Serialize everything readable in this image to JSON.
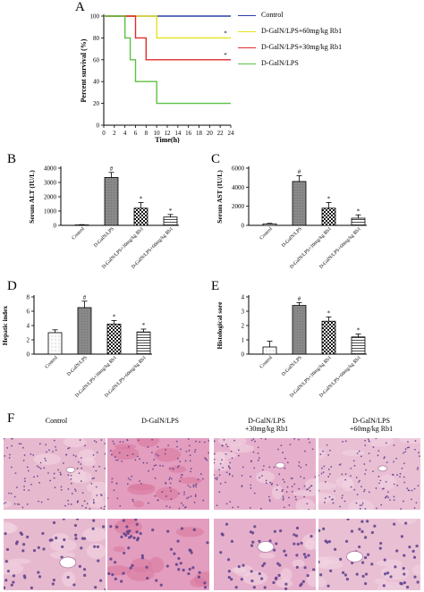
{
  "panels": {
    "A": {
      "letter": "A"
    },
    "B": {
      "letter": "B"
    },
    "C": {
      "letter": "C"
    },
    "D": {
      "letter": "D"
    },
    "E": {
      "letter": "E"
    },
    "F": {
      "letter": "F"
    }
  },
  "colors": {
    "control": "#2b3ea8",
    "rb60": "#e6e21c",
    "rb30": "#e02b2b",
    "galn": "#5dc046",
    "bar_control": "#f4f4f4",
    "bar_galn": "#8a8a8a",
    "bar_rb30": "#bdbdbd",
    "bar_rb60": "#e8e8e8",
    "tissue": "#e5b0c9",
    "nuclei": "#5a3f8a"
  },
  "photo_labels": {
    "control": "Control",
    "galn": "D-GalN/LPS",
    "rb30": "D-GalN/LPS\n+30mg/kg Rb1",
    "rb60": "D-GalN/LPS\n+60mg/kg Rb1"
  },
  "chart_data": [
    {
      "id": "A",
      "type": "line",
      "step": true,
      "xlabel": "Time(h)",
      "ylabel": "Percent survival (%)",
      "xlim": [
        0,
        24
      ],
      "ylim": [
        0,
        100
      ],
      "xticks": [
        "0",
        "2",
        "4",
        "6",
        "8",
        "10",
        "12",
        "14",
        "16",
        "18",
        "20",
        "22",
        "24"
      ],
      "yticks": [
        "0",
        "20",
        "40",
        "60",
        "80",
        "100"
      ],
      "legend_position": "right",
      "series": [
        {
          "name": "Control",
          "color": "#2b3ea8",
          "x": [
            0,
            24
          ],
          "y": [
            100,
            100
          ]
        },
        {
          "name": "D-GalN/LPS+60mg/kg Rb1",
          "color": "#e6e21c",
          "x": [
            0,
            10,
            10,
            24
          ],
          "y": [
            100,
            100,
            80,
            80
          ]
        },
        {
          "name": "D-GalN/LPS+30mg/kg Rb1",
          "color": "#e02b2b",
          "x": [
            0,
            6,
            6,
            8,
            8,
            24
          ],
          "y": [
            100,
            100,
            80,
            80,
            60,
            60
          ]
        },
        {
          "name": "D-GalN/LPS",
          "color": "#5dc046",
          "x": [
            0,
            4,
            4,
            5,
            5,
            6,
            6,
            10,
            10,
            24
          ],
          "y": [
            100,
            100,
            80,
            80,
            60,
            60,
            40,
            40,
            20,
            20
          ]
        }
      ],
      "annotations": [
        "*",
        "*"
      ]
    },
    {
      "id": "B",
      "type": "bar",
      "ylabel": "Serum ALT (IU/L)",
      "ylim": [
        0,
        4000
      ],
      "yticks": [
        "0",
        "1000",
        "2000",
        "3000",
        "4000"
      ],
      "categories": [
        "Control",
        "D-GalN/LPS",
        "D-GalN/LPS+30mg/kg Rb1",
        "D-GalN/LPS+60mg/kg Rb1"
      ],
      "values": [
        30,
        3350,
        1200,
        580
      ],
      "errors": [
        20,
        350,
        400,
        180
      ],
      "marks": [
        "",
        "#",
        "*",
        "*"
      ]
    },
    {
      "id": "C",
      "type": "bar",
      "ylabel": "Serum AST (IU/L)",
      "ylim": [
        0,
        6000
      ],
      "yticks": [
        "0",
        "2000",
        "4000",
        "6000"
      ],
      "categories": [
        "Control",
        "D-GalN/LPS",
        "D-GalN/LPS+30mg/kg Rb1",
        "D-GalN/LPS+60mg/kg Rb1"
      ],
      "values": [
        150,
        4600,
        1800,
        750
      ],
      "errors": [
        60,
        600,
        600,
        350
      ],
      "marks": [
        "",
        "#",
        "*",
        "*"
      ]
    },
    {
      "id": "D",
      "type": "bar",
      "ylabel": "Hepatic index",
      "ylim": [
        0,
        8
      ],
      "yticks": [
        "0",
        "2",
        "4",
        "6",
        "8"
      ],
      "categories": [
        "Control",
        "D-GalN/LPS",
        "D-GalN/LPS+30mg/kg Rb1",
        "D-GalN/LPS+60mg/kg Rb1"
      ],
      "values": [
        3.0,
        6.5,
        4.2,
        3.1
      ],
      "errors": [
        0.4,
        0.9,
        0.5,
        0.4
      ],
      "marks": [
        "",
        "#",
        "*",
        "*"
      ]
    },
    {
      "id": "E",
      "type": "bar",
      "ylabel": "Histological sore",
      "ylim": [
        0,
        4
      ],
      "yticks": [
        "0",
        "1",
        "2",
        "3",
        "4"
      ],
      "categories": [
        "Control",
        "D-GalN/LPS",
        "D-GalN/LPS+30mg/kg Rb1",
        "D-GalN/LPS+60mg/kg Rb1"
      ],
      "values": [
        0.5,
        3.4,
        2.3,
        1.2
      ],
      "errors": [
        0.4,
        0.2,
        0.3,
        0.2
      ],
      "marks": [
        "",
        "#",
        "*",
        "*"
      ]
    }
  ]
}
